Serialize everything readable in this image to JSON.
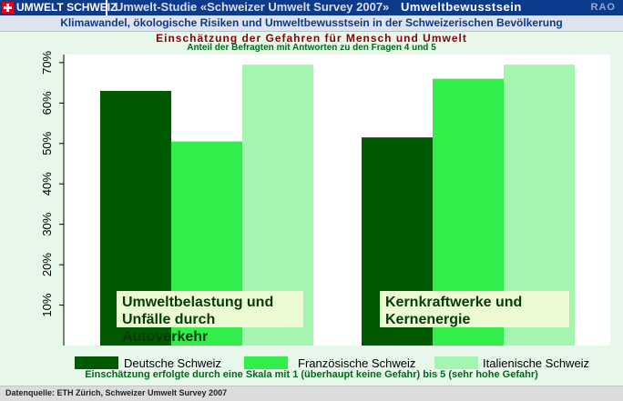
{
  "header": {
    "brand": "UMWELT SCHWEIZ",
    "study": "Umwelt-Studie «Schweizer Umwelt Survey 2007»",
    "topic": "Umweltbewusstsein",
    "logo": "RAO"
  },
  "subtitle": "Klimawandel, ökologische Risiken und Umweltbewusstsein  in der Schweizerischen Bevölkerung",
  "footnote": "Einschätzung erfolgte durch eine Skala mit 1 (überhaupt keine Gefahr) bis 5 (sehr hohe Gefahr)",
  "source": "Datenquelle: ETH Zürich, Schweizer Umwelt Survey 2007",
  "colors": {
    "deutsche": "#005a00",
    "franzoesische": "#32ee4a",
    "italienische": "#a4f5b0",
    "label_box": "#ecfad4"
  },
  "chart_data": {
    "type": "bar",
    "title": "Einschätzung der Gefahren für Mensch und Umwelt",
    "subtitle": "Anteil der Befragten mit Antworten zu den Fragen 4 und 5",
    "categories": [
      "Umweltbelastung und Unfälle durch Autoverkehr",
      "Kernkraftwerke und Kernenergie"
    ],
    "category_lines": [
      [
        "Umweltbelastung und",
        "Unfälle durch Autoverkehr"
      ],
      [
        "Kernkraftwerke und",
        "Kernenergie"
      ]
    ],
    "series": [
      {
        "name": "Deutsche Schweiz",
        "values": [
          63,
          51.5
        ]
      },
      {
        "name": "Französische Schweiz",
        "values": [
          50.5,
          66
        ]
      },
      {
        "name": "Italienische Schweiz",
        "values": [
          69.5,
          69.5
        ]
      }
    ],
    "ylim": [
      0,
      72
    ],
    "yticks": [
      10,
      20,
      30,
      40,
      50,
      60,
      70
    ],
    "ytick_labels": [
      "10%",
      "20%",
      "30%",
      "40%",
      "50%",
      "60%",
      "70%"
    ],
    "legend_position": "bottom",
    "grid": false
  }
}
